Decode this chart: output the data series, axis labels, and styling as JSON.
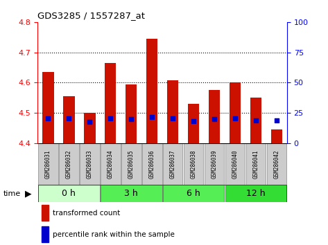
{
  "title": "GDS3285 / 1557287_at",
  "samples": [
    "GSM286031",
    "GSM286032",
    "GSM286033",
    "GSM286034",
    "GSM286035",
    "GSM286036",
    "GSM286037",
    "GSM286038",
    "GSM286039",
    "GSM286040",
    "GSM286041",
    "GSM286042"
  ],
  "red_values": [
    4.635,
    4.555,
    4.5,
    4.665,
    4.595,
    4.745,
    4.608,
    4.53,
    4.575,
    4.602,
    4.552,
    4.445
  ],
  "blue_values": [
    4.483,
    4.482,
    4.471,
    4.483,
    4.481,
    4.486,
    4.482,
    4.473,
    4.48,
    4.483,
    4.476,
    4.475
  ],
  "ylim_left": [
    4.4,
    4.8
  ],
  "ylim_right": [
    0,
    100
  ],
  "yticks_left": [
    4.4,
    4.5,
    4.6,
    4.7,
    4.8
  ],
  "yticks_right": [
    0,
    25,
    50,
    75,
    100
  ],
  "groups": [
    {
      "label": "0 h",
      "start": 0,
      "end": 2,
      "color": "#ccffcc"
    },
    {
      "label": "3 h",
      "start": 3,
      "end": 5,
      "color": "#55ee55"
    },
    {
      "label": "6 h",
      "start": 6,
      "end": 8,
      "color": "#55ee55"
    },
    {
      "label": "12 h",
      "start": 9,
      "end": 11,
      "color": "#33dd33"
    }
  ],
  "bar_color": "#cc1100",
  "blue_color": "#0000cc",
  "baseline": 4.4,
  "bar_width": 0.55,
  "bg_color": "#ffffff",
  "sample_box_color": "#cccccc",
  "sample_box_edge": "#888888",
  "grid_lines": [
    4.5,
    4.6,
    4.7
  ],
  "left_spine_color": "red",
  "right_spine_color": "blue",
  "time_label": "time",
  "legend_items": [
    {
      "color": "#cc1100",
      "label": "transformed count"
    },
    {
      "color": "#0000cc",
      "label": "percentile rank within the sample"
    }
  ]
}
